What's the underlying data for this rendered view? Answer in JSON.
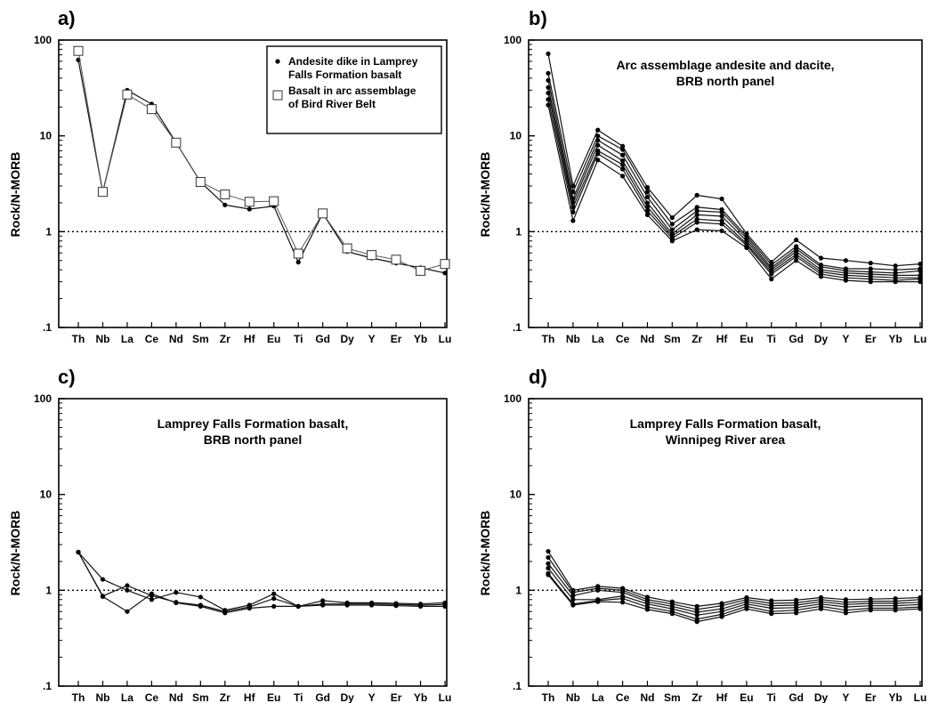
{
  "figure": {
    "ylabel": "Rock/N-MORB",
    "ytick_labels": [
      "100",
      "10",
      "1",
      ".1"
    ],
    "elements": [
      "Th",
      "Nb",
      "La",
      "Ce",
      "Nd",
      "Sm",
      "Zr",
      "Hf",
      "Eu",
      "Ti",
      "Gd",
      "Dy",
      "Y",
      "Er",
      "Yb",
      "Lu"
    ]
  },
  "chart_data": [
    {
      "type": "line",
      "panel": "a)",
      "title": "",
      "xlabel": "",
      "ylabel": "Rock/N-MORB",
      "yscale": "log",
      "ylim": [
        0.1,
        100
      ],
      "reference_line": 1,
      "categories": [
        "Th",
        "Nb",
        "La",
        "Ce",
        "Nd",
        "Sm",
        "Zr",
        "Hf",
        "Eu",
        "Ti",
        "Gd",
        "Dy",
        "Y",
        "Er",
        "Yb",
        "Lu"
      ],
      "legend": {
        "placement": "top-right"
      },
      "series": [
        {
          "name": "Andesite dike in Lamprey Falls Formation basalt",
          "marker": "dot",
          "values": [
            62,
            2.6,
            30,
            21.5,
            8.5,
            3.3,
            1.9,
            1.72,
            1.85,
            0.48,
            1.55,
            0.62,
            0.53,
            0.47,
            0.42,
            0.37
          ]
        },
        {
          "name": "Basalt in arc assemblage of Bird River Belt",
          "marker": "square",
          "values": [
            77,
            2.6,
            27,
            19,
            8.5,
            3.3,
            2.45,
            2.05,
            2.08,
            0.59,
            1.55,
            0.67,
            0.57,
            0.51,
            0.39,
            0.46
          ]
        }
      ]
    },
    {
      "type": "line",
      "panel": "b)",
      "title": "Arc assemblage andesite and dacite,\nBRB north panel",
      "xlabel": "",
      "ylabel": "Rock/N-MORB",
      "yscale": "log",
      "ylim": [
        0.1,
        100
      ],
      "reference_line": 1,
      "categories": [
        "Th",
        "Nb",
        "La",
        "Ce",
        "Nd",
        "Sm",
        "Zr",
        "Hf",
        "Eu",
        "Ti",
        "Gd",
        "Dy",
        "Y",
        "Er",
        "Yb",
        "Lu"
      ],
      "series": [
        {
          "values": [
            72,
            3.0,
            11.5,
            7.8,
            2.9,
            1.4,
            2.4,
            2.2,
            0.95,
            0.48,
            0.82,
            0.53,
            0.5,
            0.47,
            0.44,
            0.46
          ]
        },
        {
          "values": [
            45,
            2.6,
            10,
            7.2,
            2.6,
            1.2,
            1.8,
            1.7,
            0.9,
            0.45,
            0.7,
            0.45,
            0.41,
            0.41,
            0.4,
            0.41
          ]
        },
        {
          "values": [
            38,
            2.2,
            9,
            6.3,
            2.3,
            1.05,
            1.65,
            1.6,
            0.85,
            0.42,
            0.66,
            0.43,
            0.39,
            0.38,
            0.37,
            0.39
          ]
        },
        {
          "values": [
            32,
            2.0,
            8,
            5.5,
            2.0,
            0.95,
            1.5,
            1.45,
            0.8,
            0.4,
            0.62,
            0.4,
            0.37,
            0.36,
            0.35,
            0.35
          ]
        },
        {
          "values": [
            28,
            1.8,
            7,
            5.0,
            1.8,
            0.9,
            1.35,
            1.3,
            0.75,
            0.38,
            0.58,
            0.38,
            0.35,
            0.34,
            0.33,
            0.33
          ]
        },
        {
          "values": [
            24,
            1.6,
            6.5,
            4.5,
            1.65,
            0.85,
            1.25,
            1.2,
            0.72,
            0.36,
            0.55,
            0.36,
            0.33,
            0.32,
            0.31,
            0.32
          ]
        },
        {
          "values": [
            21,
            1.3,
            5.6,
            3.8,
            1.5,
            0.8,
            1.05,
            1.02,
            0.68,
            0.32,
            0.5,
            0.34,
            0.31,
            0.3,
            0.3,
            0.3
          ]
        }
      ]
    },
    {
      "type": "line",
      "panel": "c)",
      "title": "Lamprey Falls Formation basalt,\nBRB north panel",
      "xlabel": "",
      "ylabel": "Rock/N-MORB",
      "yscale": "log",
      "ylim": [
        0.1,
        100
      ],
      "reference_line": 1,
      "categories": [
        "Th",
        "Nb",
        "La",
        "Ce",
        "Nd",
        "Sm",
        "Zr",
        "Hf",
        "Eu",
        "Ti",
        "Gd",
        "Dy",
        "Y",
        "Er",
        "Yb",
        "Lu"
      ],
      "series": [
        {
          "values": [
            2.5,
            1.3,
            1.0,
            0.8,
            0.95,
            0.85,
            0.62,
            0.7,
            0.92,
            0.68,
            0.78,
            0.74,
            0.74,
            0.73,
            0.72,
            0.74
          ]
        },
        {
          "values": [
            2.5,
            0.87,
            1.12,
            0.88,
            0.75,
            0.7,
            0.6,
            0.67,
            0.82,
            0.68,
            0.72,
            0.72,
            0.72,
            0.71,
            0.7,
            0.71
          ]
        },
        {
          "values": [
            2.5,
            0.86,
            0.6,
            0.92,
            0.74,
            0.68,
            0.58,
            0.65,
            0.68,
            0.68,
            0.7,
            0.7,
            0.7,
            0.69,
            0.68,
            0.68
          ]
        }
      ]
    },
    {
      "type": "line",
      "panel": "d)",
      "title": "Lamprey Falls Formation basalt,\nWinnipeg River area",
      "xlabel": "",
      "ylabel": "Rock/N-MORB",
      "yscale": "log",
      "ylim": [
        0.1,
        100
      ],
      "reference_line": 1,
      "categories": [
        "Th",
        "Nb",
        "La",
        "Ce",
        "Nd",
        "Sm",
        "Zr",
        "Hf",
        "Eu",
        "Ti",
        "Gd",
        "Dy",
        "Y",
        "Er",
        "Yb",
        "Lu"
      ],
      "series": [
        {
          "values": [
            2.55,
            1.0,
            1.1,
            1.05,
            0.85,
            0.76,
            0.68,
            0.73,
            0.84,
            0.78,
            0.79,
            0.84,
            0.8,
            0.81,
            0.82,
            0.84
          ]
        },
        {
          "values": [
            2.2,
            0.95,
            1.05,
            1.0,
            0.8,
            0.72,
            0.63,
            0.69,
            0.8,
            0.73,
            0.74,
            0.8,
            0.75,
            0.77,
            0.77,
            0.8
          ]
        },
        {
          "values": [
            1.9,
            0.88,
            1.0,
            0.95,
            0.76,
            0.68,
            0.59,
            0.64,
            0.76,
            0.69,
            0.7,
            0.76,
            0.71,
            0.73,
            0.73,
            0.75
          ]
        },
        {
          "values": [
            1.7,
            0.8,
            0.8,
            0.87,
            0.72,
            0.64,
            0.55,
            0.6,
            0.72,
            0.65,
            0.66,
            0.72,
            0.67,
            0.69,
            0.69,
            0.71
          ]
        },
        {
          "values": [
            1.5,
            0.72,
            0.78,
            0.82,
            0.67,
            0.6,
            0.5,
            0.56,
            0.68,
            0.6,
            0.62,
            0.68,
            0.62,
            0.65,
            0.65,
            0.67
          ]
        },
        {
          "values": [
            1.45,
            0.7,
            0.76,
            0.75,
            0.63,
            0.57,
            0.47,
            0.53,
            0.64,
            0.57,
            0.58,
            0.64,
            0.58,
            0.62,
            0.62,
            0.64
          ]
        }
      ]
    }
  ]
}
